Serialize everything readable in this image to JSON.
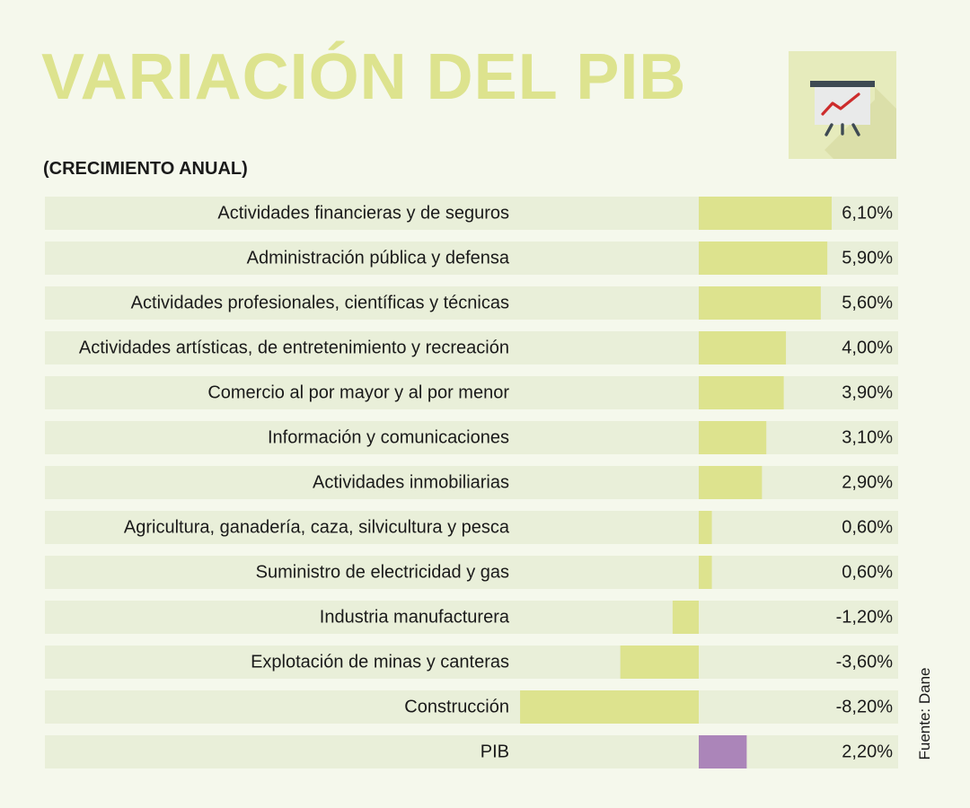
{
  "title": "VARIACIÓN DEL PIB",
  "subtitle": "(CRECIMIENTO ANUAL)",
  "source": "Fuente: Dane",
  "icon": "presentation-chart-icon",
  "colors": {
    "background": "#f5f8ec",
    "row_band": "#e9efd9",
    "title": "#dde38e",
    "bar": "#dde38e",
    "highlight_bar": "#ab85b9",
    "text": "#1a1a1a"
  },
  "chart_data": {
    "type": "bar",
    "orientation": "horizontal",
    "unit": "%",
    "categories": [
      "Actividades financieras y de seguros",
      "Administración pública y defensa",
      "Actividades profesionales, científicas y técnicas",
      "Actividades artísticas, de entretenimiento y recreación",
      "Comercio al por mayor y al por menor",
      "Información y comunicaciones",
      "Actividades inmobiliarias",
      "Agricultura, ganadería, caza, silvicultura y pesca",
      "Suministro de electricidad y gas",
      "Industria manufacturera",
      "Explotación de minas y canteras",
      "Construcción",
      "PIB"
    ],
    "values": [
      6.1,
      5.9,
      5.6,
      4.0,
      3.9,
      3.1,
      2.9,
      0.6,
      0.6,
      -1.2,
      -3.6,
      -8.2,
      2.2
    ],
    "value_labels": [
      "6,10%",
      "5,90%",
      "5,60%",
      "4,00%",
      "3,90%",
      "3,10%",
      "2,90%",
      "0,60%",
      "0,60%",
      "-1,20%",
      "-3,60%",
      "-8,20%",
      "2,20%"
    ],
    "highlight": "PIB",
    "xlim": [
      -8.2,
      6.1
    ]
  }
}
